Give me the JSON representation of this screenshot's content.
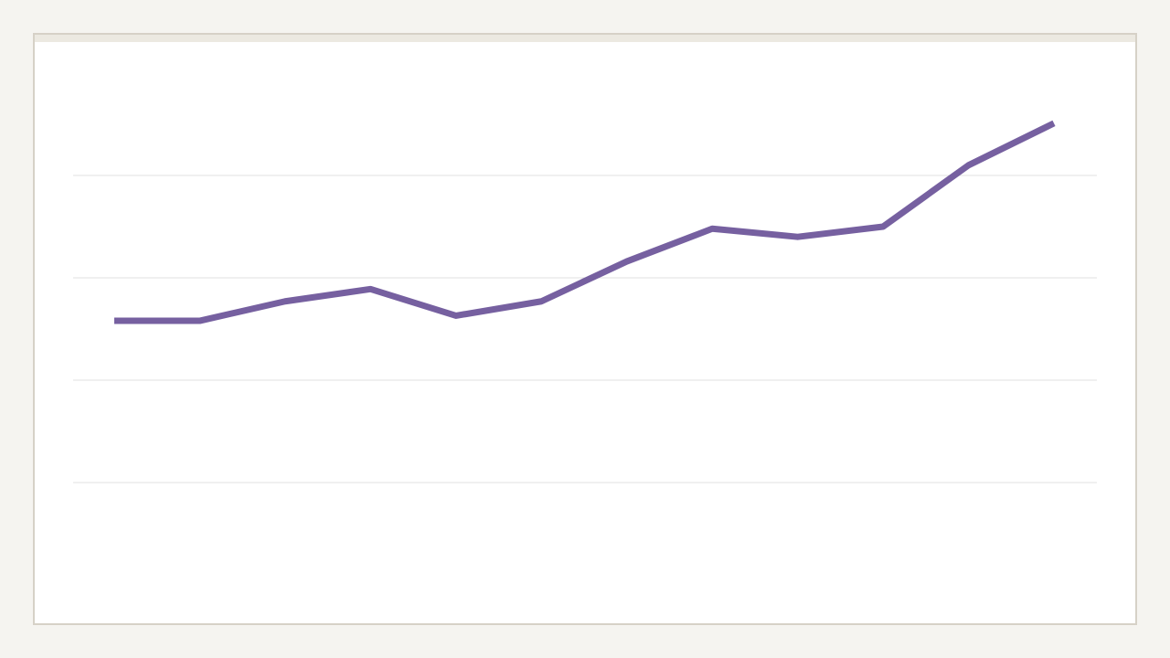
{
  "chart_data": {
    "type": "line",
    "categories": [
      null,
      null,
      null,
      null,
      null,
      null,
      null,
      null,
      null,
      null,
      null,
      null
    ],
    "series": [
      {
        "color": "#7660a0",
        "values": [
          2.58,
          2.58,
          2.77,
          2.89,
          2.63,
          2.77,
          3.16,
          3.48,
          3.4,
          3.5,
          4.1,
          4.51
        ]
      }
    ],
    "ylim": [
      0,
      5
    ],
    "yticks": [
      1,
      2,
      3,
      4
    ],
    "grid": true
  }
}
